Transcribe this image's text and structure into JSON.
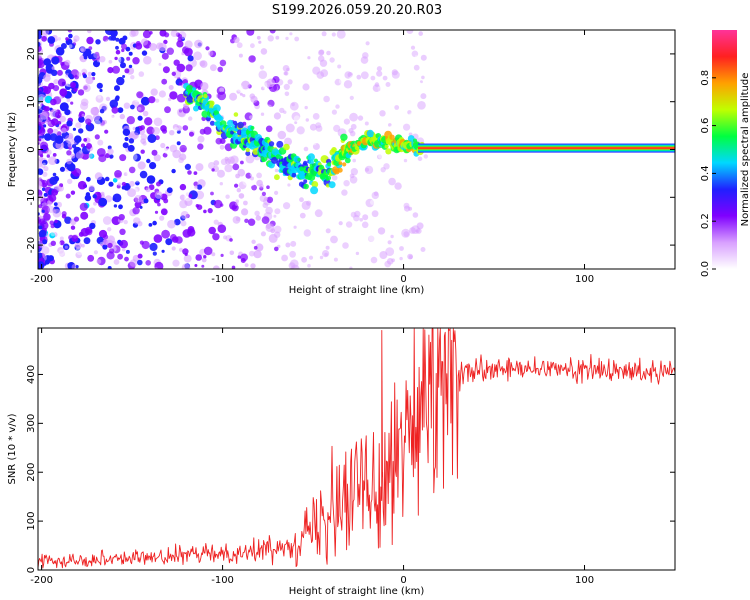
{
  "title": "S199.2026.059.20.20.R03",
  "chart_data": [
    {
      "type": "heatmap",
      "title": "S199.2026.059.20.20.R03",
      "xlabel": "Height of straight line (km)",
      "ylabel": "Frequency (Hz)",
      "xlim": [
        -202,
        150
      ],
      "ylim": [
        -25,
        25
      ],
      "xticks": [
        -200,
        -100,
        0,
        100
      ],
      "xtick_labels": [
        "-200",
        "-100",
        "0",
        "100"
      ],
      "yticks": [
        -20,
        -10,
        0,
        10,
        20
      ],
      "ytick_labels": [
        "-20",
        "-10",
        "0",
        "10",
        "20"
      ],
      "colorbar": {
        "label": "Normalized spectral amplitude",
        "range": [
          0,
          1
        ],
        "ticks": [
          0.0,
          0.2,
          0.4,
          0.6,
          0.8
        ],
        "tick_labels": [
          "0.0",
          "0.2",
          "0.4",
          "0.6",
          "0.8"
        ],
        "colors": [
          "#ffffff",
          "#d8a0ff",
          "#8000ff",
          "#2020ff",
          "#00d8ff",
          "#00ff40",
          "#c0ff00",
          "#ffa000",
          "#ff2020",
          "#ff3399"
        ]
      },
      "ridge": {
        "description": "frequency centroid vs height",
        "x": [
          -120,
          -110,
          -100,
          -90,
          -80,
          -70,
          -60,
          -50,
          -40,
          -30,
          -20,
          -10,
          0,
          10,
          50,
          100,
          150
        ],
        "y": [
          12,
          10,
          5,
          3,
          1,
          -2,
          -4,
          -5,
          -4,
          0,
          2,
          1.5,
          1,
          0.3,
          0.3,
          0.3,
          0.3
        ]
      },
      "steady_line": {
        "x_range": [
          8,
          150
        ],
        "frequency": 0.3
      }
    },
    {
      "type": "line",
      "title": "",
      "xlabel": "Height of straight line (km)",
      "ylabel": "SNR (10 * v/v)",
      "xlim": [
        -202,
        150
      ],
      "ylim": [
        0,
        495
      ],
      "xticks": [
        -200,
        -100,
        0,
        100
      ],
      "xtick_labels": [
        "-200",
        "-100",
        "0",
        "100"
      ],
      "yticks": [
        0,
        100,
        200,
        300,
        400
      ],
      "ytick_labels": [
        "0",
        "100",
        "200",
        "300",
        "400"
      ],
      "series": [
        {
          "name": "SNR",
          "color": "#ee2222",
          "x": [
            -202,
            -180,
            -160,
            -140,
            -120,
            -100,
            -90,
            -80,
            -70,
            -60,
            -50,
            -40,
            -35,
            -30,
            -25,
            -20,
            -15,
            -10,
            -5,
            0,
            5,
            10,
            15,
            20,
            25,
            30,
            40,
            60,
            80,
            100,
            120,
            150
          ],
          "y": [
            20,
            20,
            25,
            25,
            30,
            35,
            35,
            40,
            45,
            60,
            80,
            120,
            150,
            160,
            170,
            190,
            200,
            210,
            230,
            255,
            280,
            310,
            340,
            370,
            390,
            400,
            405,
            410,
            410,
            410,
            405,
            410
          ]
        }
      ],
      "annotations": {
        "max_spike": {
          "x": -12,
          "y": 490
        }
      }
    }
  ]
}
